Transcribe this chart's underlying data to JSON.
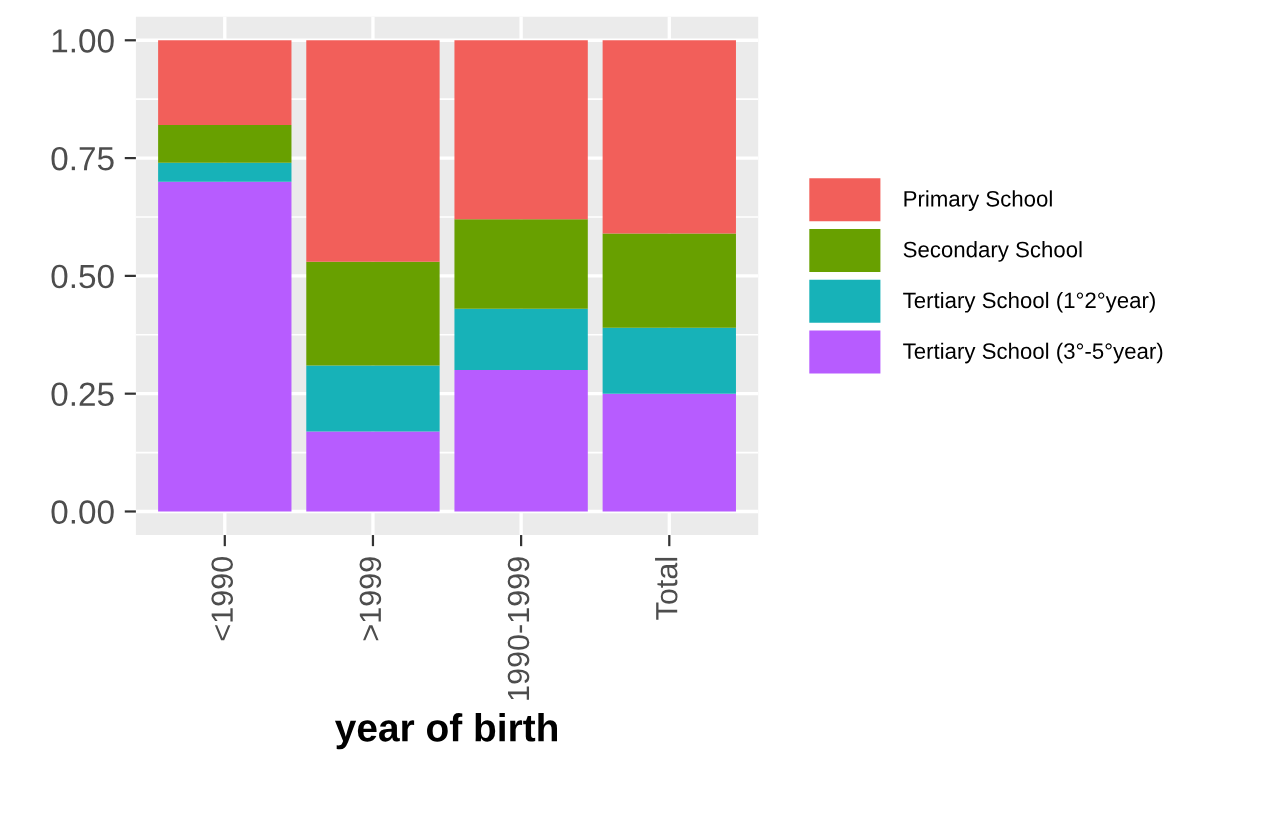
{
  "chart_data": {
    "type": "bar",
    "stacked": true,
    "xlabel": "year of birth",
    "categories": [
      "<1990",
      ">1999",
      "1990-1999",
      "Total"
    ],
    "series": [
      {
        "name": "Tertiary School (3°-5°year)",
        "color": "#b75cff",
        "values": [
          0.7,
          0.17,
          0.3,
          0.25
        ]
      },
      {
        "name": "Tertiary School (1°2°year)",
        "color": "#17b2b8",
        "values": [
          0.04,
          0.14,
          0.13,
          0.14
        ]
      },
      {
        "name": "Secondary School",
        "color": "#68a000",
        "values": [
          0.08,
          0.22,
          0.19,
          0.2
        ]
      },
      {
        "name": "Primary School",
        "color": "#f25f5a",
        "values": [
          0.18,
          0.47,
          0.38,
          0.41
        ]
      }
    ],
    "ylim": [
      -0.05,
      1.05
    ],
    "yticks": [
      {
        "value": 0,
        "label": "0.00"
      },
      {
        "value": 0.25,
        "label": "0.25"
      },
      {
        "value": 0.5,
        "label": "0.50"
      },
      {
        "value": 0.75,
        "label": "0.75"
      },
      {
        "value": 1,
        "label": "1.00"
      }
    ],
    "grid": true,
    "legend": "right"
  }
}
